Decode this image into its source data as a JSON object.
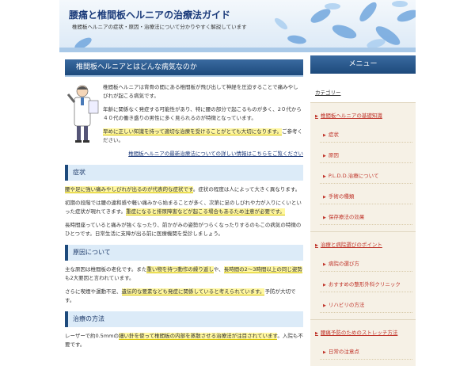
{
  "header": {
    "title": "腰痛と椎間板ヘルニアの治療法ガイド",
    "subtitle": "椎間板ヘルニアの症状・原因・治療法について分かりやすく解説しています"
  },
  "article": {
    "heading": "椎間板ヘルニアとはどんな病気なのか",
    "intro": [
      [
        {
          "text": "椎間板ヘルニアは背骨の間にある椎間板が飛び出して神経を圧迫することで痛みやしびれが起こる病気です。"
        }
      ],
      [
        {
          "text": "年齢に関係なく発症する可能性があり、特に腰の部分で起こるものが多く、2０代から４０代の働き盛りの男性に多く見られるのが特徴となっています。"
        }
      ],
      [
        {
          "text": "早めに正しい知識を持って適切な治療を受けることがとても大切になります。",
          "hl": true
        },
        {
          "text": "ご参考ください。"
        }
      ]
    ],
    "link": "椎間板ヘルニアの最新治療法についての詳しい情報はこちらをご覧ください"
  },
  "sections": [
    {
      "heading": "症状",
      "paragraphs": [
        [
          {
            "text": "腰や足に強い痛みやしびれが出るのが代表的な症状です",
            "hl": true
          },
          {
            "text": "。症状の程度は人によって大きく異なります。"
          }
        ],
        [
          {
            "text": "初期の段階では腰の違和感や軽い痛みから始まることが多く、次第に足のしびれや力が入りにくいといった症状が現れてきます。"
          },
          {
            "text": "重症になると排尿障害などが起こる場合もあるため注意が必要です。",
            "hl": true
          }
        ],
        [
          {
            "text": "長時間座っていると痛みが強くなったり、前かがみの姿勢がつらくなったりするのもこの病気の特徴のひとつです。日常生活に支障が出る前に医療機関を受診しましょう。"
          }
        ]
      ]
    },
    {
      "heading": "原因について",
      "paragraphs": [
        [
          {
            "text": "主な原因は椎間板の老化です"
          },
          {
            "text": "。また"
          },
          {
            "text": "重い物を持つ動作の繰り返し",
            "hl": true
          },
          {
            "text": "や、"
          },
          {
            "text": "長時間の2〜3時間以上の同じ姿勢",
            "hl": true
          },
          {
            "text": "も2大要因と言われています。"
          }
        ],
        [
          {
            "text": "さらに喫煙や運動不足、"
          },
          {
            "text": "遺伝的な要素なども発症に関係していると考えられています。",
            "hl": true
          },
          {
            "text": "予防が大切です。"
          }
        ]
      ]
    },
    {
      "heading": "治療の方法",
      "paragraphs": [
        [
          {
            "text": "レーザーで約0.5mmの"
          },
          {
            "text": "細い針を使って椎間板の内部を蒸散させる治療法が注目されています",
            "hl": true
          },
          {
            "text": "。入院も不要です。"
          }
        ]
      ]
    }
  ],
  "sidebar": {
    "heading": "メニュー",
    "label": "カテゴリー",
    "groups": [
      {
        "title": "椎間板ヘルニアの基礎知識",
        "items": [
          "症状",
          "原因",
          "P.L.D.D.治療について",
          "手術の種類",
          "保存療法の効果"
        ]
      },
      {
        "title": "治療と病院選びのポイント",
        "items": [
          "病院の選び方",
          "おすすめの整形外科クリニック",
          "リハビリの方法"
        ]
      },
      {
        "title": "腰痛予防のためのストレッチ方法",
        "items": [
          "日常の注意点"
        ]
      }
    ]
  }
}
